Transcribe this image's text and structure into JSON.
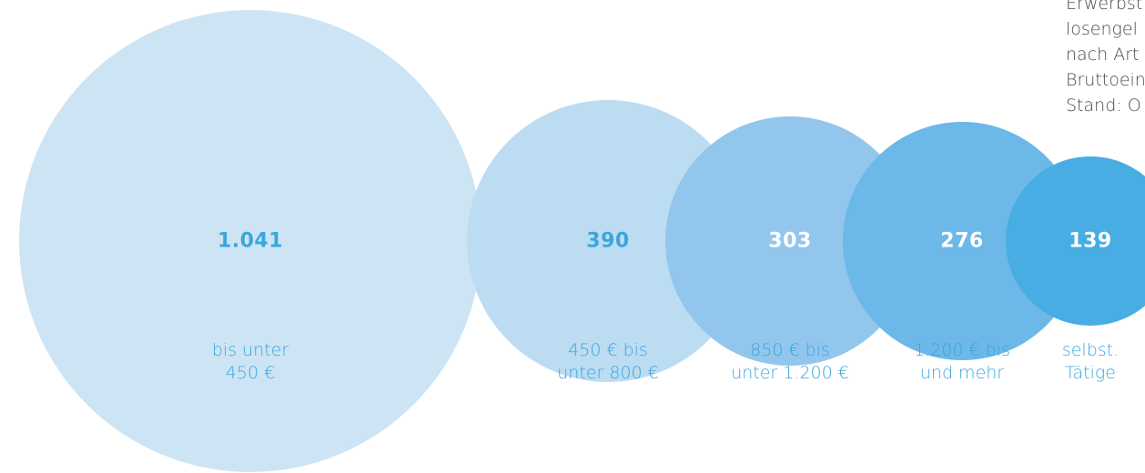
{
  "chart_data": {
    "type": "bubble",
    "title": "",
    "values": [
      1041,
      390,
      303,
      276,
      139
    ],
    "categories": [
      [
        "bis unter",
        "450 €"
      ],
      [
        "450 € bis",
        "unter 800 €"
      ],
      [
        "850 € bis",
        "unter 1.200 €"
      ],
      [
        "1.200 € bis",
        "und mehr"
      ],
      [
        "selbst.",
        "Tätige"
      ]
    ],
    "value_labels": [
      "1.041",
      "390",
      "303",
      "276",
      "139"
    ],
    "colors": {
      "bubbles": [
        "#cde4f5",
        "#bcdcf2",
        "#93c6ec",
        "#6cb8e8",
        "#48ade3"
      ],
      "value_text": [
        "#3aa6dd",
        "#3aa6dd",
        "#ffffff",
        "#ffffff",
        "#ffffff"
      ],
      "category_text": "#3aa6dd"
    }
  },
  "note_lines": [
    "Erwerbst",
    "losengel",
    "nach Art",
    "Bruttoein",
    "Stand: O"
  ]
}
